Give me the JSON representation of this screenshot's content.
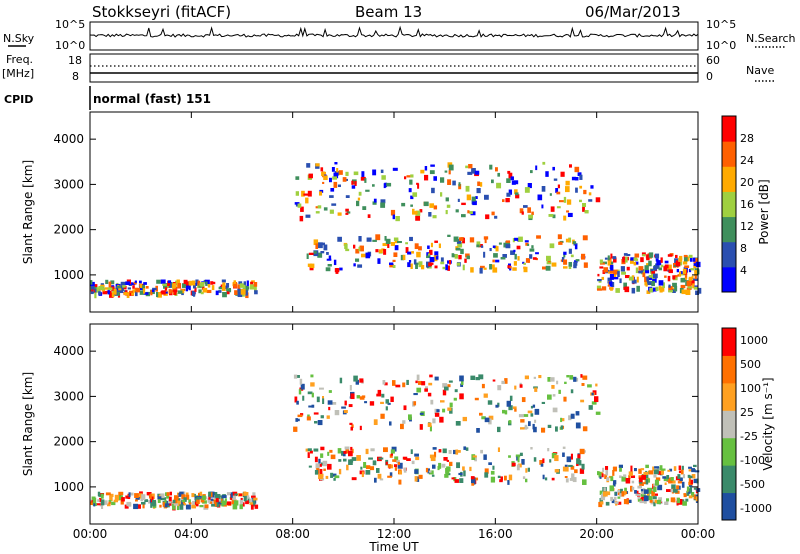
{
  "header": {
    "title": "Stokkseyri (fitACF)",
    "beam": "Beam 13",
    "date": "06/Mar/2013"
  },
  "nsky_panel": {
    "left_label": "N.Sky",
    "right_label": "N.Search",
    "left_ticks": [
      "10^5",
      "10^0"
    ],
    "right_ticks": [
      "10^5",
      "10^0"
    ]
  },
  "freq_panel": {
    "left_label_1": "Freq.",
    "left_label_2": "[MHz]",
    "right_label": "Nave",
    "left_ticks": [
      "18",
      "8"
    ],
    "right_ticks": [
      "60",
      "0"
    ]
  },
  "cpid_panel": {
    "label": "CPID",
    "text": "normal (fast) 151"
  },
  "chart_data": [
    {
      "type": "heatmap",
      "ylabel": "Slant Range [km]",
      "xlabel": "",
      "y_ticks": [
        "1000",
        "2000",
        "3000",
        "4000"
      ],
      "ylim": [
        180,
        4600
      ],
      "colorbar_label": "Power [dB]",
      "colorbar_ticks": [
        "4",
        "8",
        "12",
        "16",
        "20",
        "24",
        "28"
      ],
      "colors": [
        "#0000ff",
        "#2a4fb0",
        "#3f8f5c",
        "#9fd040",
        "#ffaa00",
        "#ff6000",
        "#ff0000"
      ],
      "bands": [
        {
          "t0": 8.5,
          "t1": 19.5,
          "r0": 1150,
          "r1": 1900,
          "level": 20
        },
        {
          "t0": 20.0,
          "t1": 24.0,
          "r0": 650,
          "r1": 1500,
          "level": 28
        },
        {
          "t0": 0.0,
          "t1": 6.5,
          "r0": 600,
          "r1": 900,
          "level": 20
        },
        {
          "t0": 8.0,
          "t1": 20.0,
          "r0": 2300,
          "r1": 3500,
          "level": 12
        }
      ]
    },
    {
      "type": "heatmap",
      "ylabel": "Slant Range [km]",
      "xlabel": "Time UT",
      "x_ticks": [
        "00:00",
        "04:00",
        "08:00",
        "12:00",
        "16:00",
        "20:00",
        "00:00"
      ],
      "xlim": [
        0,
        24
      ],
      "y_ticks": [
        "1000",
        "2000",
        "3000",
        "4000"
      ],
      "ylim": [
        180,
        4600
      ],
      "colorbar_label": "Velocity [m s⁻¹]",
      "colorbar_ticks": [
        "1000",
        "500",
        "100",
        "25",
        "-25",
        "-100",
        "-500",
        "-1000"
      ],
      "colors": [
        "#1f4fa0",
        "#3a8a6a",
        "#66c040",
        "#c0c0b8",
        "#ffa020",
        "#ff7000",
        "#ff0000"
      ],
      "bands": [
        {
          "t0": 8.5,
          "t1": 19.5,
          "r0": 1150,
          "r1": 1900,
          "level": 0
        },
        {
          "t0": 20.0,
          "t1": 24.0,
          "r0": 650,
          "r1": 1500,
          "level": -300
        },
        {
          "t0": 0.0,
          "t1": 6.5,
          "r0": 600,
          "r1": 900,
          "level": 0
        },
        {
          "t0": 8.0,
          "t1": 20.0,
          "r0": 2300,
          "r1": 3500,
          "level": 0
        }
      ]
    }
  ]
}
